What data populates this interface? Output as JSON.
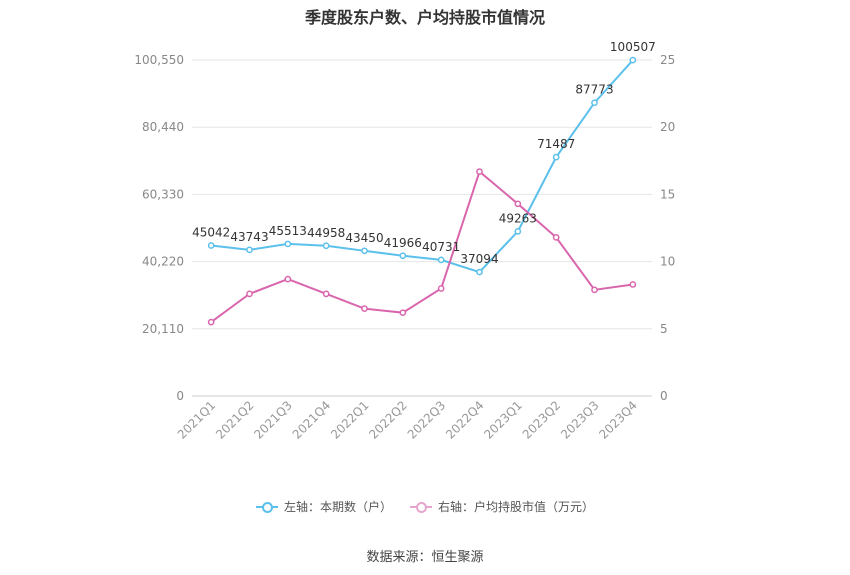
{
  "chart_data": {
    "type": "line",
    "title": "季度股东户数、户均持股市值情况",
    "categories": [
      "2021Q1",
      "2021Q2",
      "2021Q3",
      "2021Q4",
      "2022Q1",
      "2022Q2",
      "2022Q3",
      "2022Q4",
      "2023Q1",
      "2023Q2",
      "2023Q3",
      "2023Q4"
    ],
    "left_axis": {
      "ticks": [
        "0",
        "20,110",
        "40,220",
        "60,330",
        "80,440",
        "100,550"
      ],
      "ylim": [
        0,
        100550
      ]
    },
    "right_axis": {
      "ticks": [
        "0",
        "5",
        "10",
        "15",
        "20",
        "25"
      ],
      "ylim": [
        0,
        25
      ]
    },
    "series": [
      {
        "name": "左轴：本期数（户）",
        "axis": "left",
        "color": "#5bc0eb",
        "values": [
          45042,
          43743,
          45513,
          44958,
          43450,
          41966,
          40731,
          37094,
          49263,
          71487,
          87773,
          100507
        ],
        "labels": [
          "45042",
          "43743",
          "45513",
          "44958",
          "43450",
          "41966",
          "40731",
          "37094",
          "49263",
          "71487",
          "87773",
          "100507"
        ]
      },
      {
        "name": "右轴：户均持股市值（万元）",
        "axis": "right",
        "color": "#d966ad",
        "values": [
          5.5,
          7.6,
          8.7,
          7.6,
          6.5,
          6.2,
          8.0,
          16.7,
          14.3,
          11.8,
          7.9,
          8.3
        ]
      }
    ],
    "grid": true,
    "legend_position": "bottom"
  },
  "source": "数据来源：恒生聚源"
}
